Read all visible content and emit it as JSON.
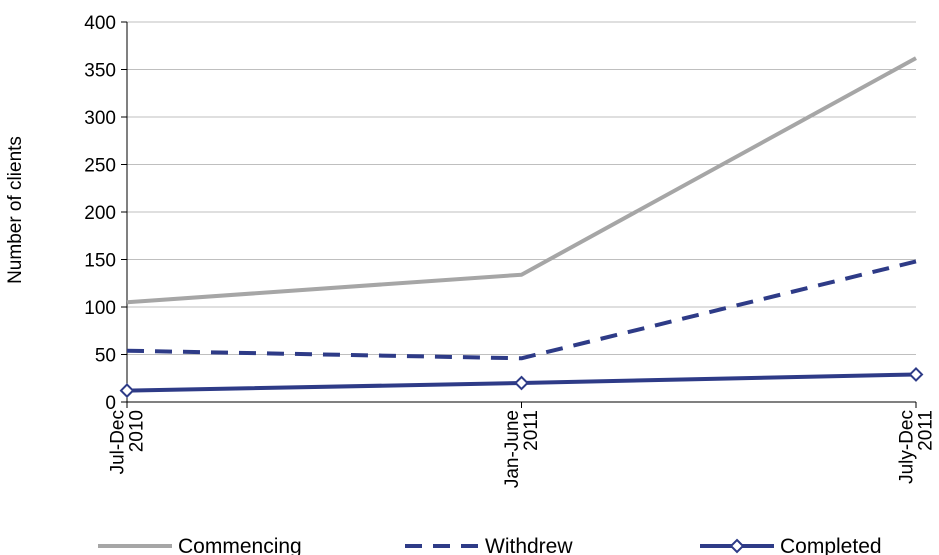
{
  "chart_data": {
    "type": "line",
    "categories": [
      [
        "Jul-Dec",
        "2010"
      ],
      [
        "Jan-June",
        "2011"
      ],
      [
        "July-Dec",
        "2011"
      ]
    ],
    "ylabel": "Number of clients",
    "xlabel": "",
    "ylim": [
      0,
      400
    ],
    "yticks": [
      0,
      50,
      100,
      150,
      200,
      250,
      300,
      350,
      400
    ],
    "grid": true,
    "legend_position": "bottom",
    "series": [
      {
        "name": "Commencing",
        "values": [
          105,
          134,
          362
        ],
        "color": "#a6a6a6",
        "style": "solid",
        "marker": "none"
      },
      {
        "name": "Withdrew",
        "values": [
          54,
          46,
          148
        ],
        "color": "#2e3b87",
        "style": "dashed",
        "marker": "none"
      },
      {
        "name": "Completed",
        "values": [
          12,
          20,
          29
        ],
        "color": "#2e3b87",
        "style": "solid",
        "marker": "diamond"
      }
    ]
  }
}
